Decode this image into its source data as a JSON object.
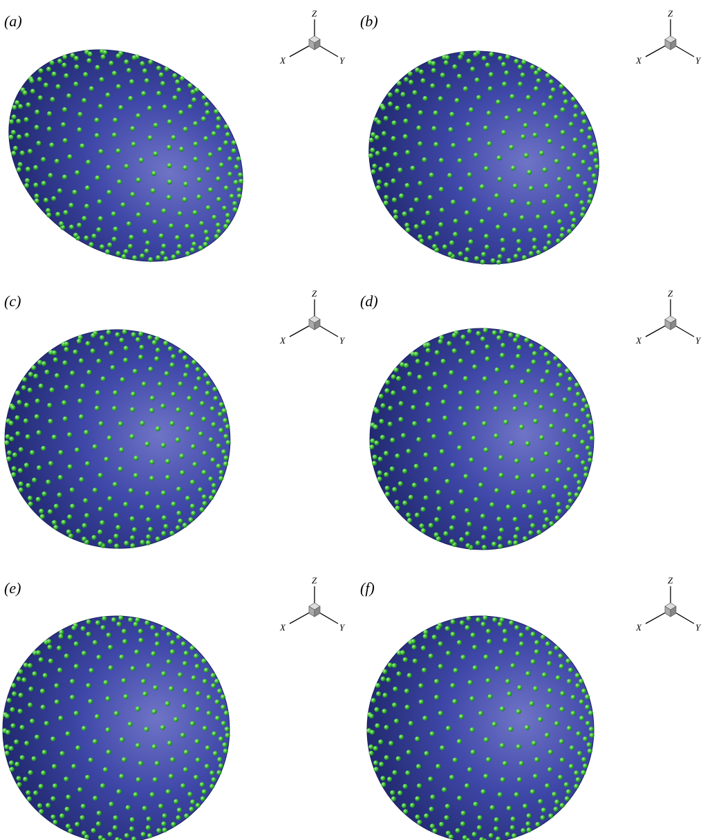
{
  "panels": [
    {
      "label": "(a)",
      "axes": {
        "x": "X",
        "y": "Y",
        "z": "Z"
      }
    },
    {
      "label": "(b)",
      "axes": {
        "x": "X",
        "y": "Y",
        "z": "Z"
      }
    },
    {
      "label": "(c)",
      "axes": {
        "x": "X",
        "y": "Y",
        "z": "Z"
      }
    },
    {
      "label": "(d)",
      "axes": {
        "x": "X",
        "y": "Y",
        "z": "Z"
      }
    },
    {
      "label": "(e)",
      "axes": {
        "x": "X",
        "y": "Y",
        "z": "Z"
      }
    },
    {
      "label": "(f)",
      "axes": {
        "x": "X",
        "y": "Y",
        "z": "Z"
      }
    }
  ]
}
